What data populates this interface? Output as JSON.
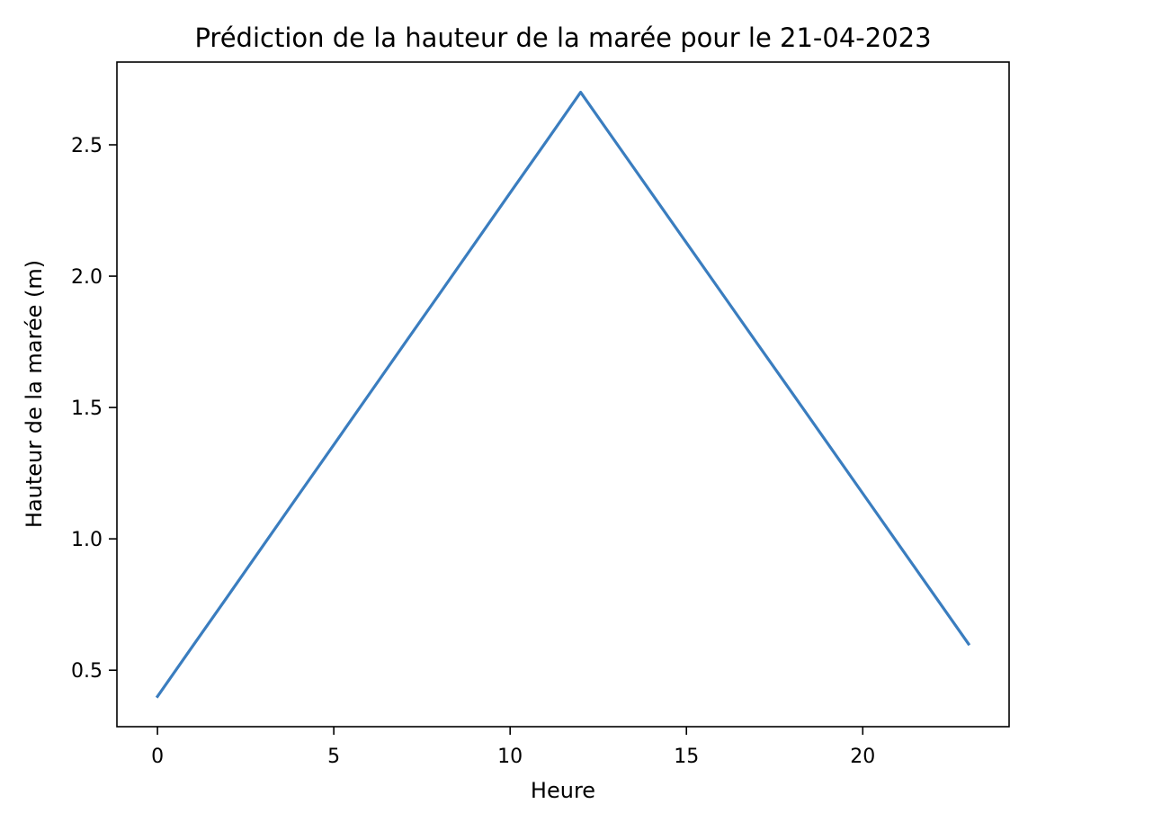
{
  "chart_data": {
    "type": "line",
    "title": "Prédiction de la hauteur de la marée pour le 21-04-2023",
    "xlabel": "Heure",
    "ylabel": "Hauteur de la marée (m)",
    "xlim": [
      -1.15,
      24.15
    ],
    "ylim": [
      0.285,
      2.815
    ],
    "x_ticks": [
      0,
      5,
      10,
      15,
      20
    ],
    "x_tick_labels": [
      "0",
      "5",
      "10",
      "15",
      "20"
    ],
    "y_ticks": [
      0.5,
      1.0,
      1.5,
      2.0,
      2.5
    ],
    "y_tick_labels": [
      "0.5",
      "1.0",
      "1.5",
      "2.0",
      "2.5"
    ],
    "grid": false,
    "series": [
      {
        "color": "#3a7dbf",
        "x": [
          0,
          1,
          2,
          3,
          4,
          5,
          6,
          7,
          8,
          9,
          10,
          11,
          12,
          13,
          14,
          15,
          16,
          17,
          18,
          19,
          20,
          21,
          22,
          23
        ],
        "values": [
          0.4,
          0.592,
          0.783,
          0.975,
          1.167,
          1.358,
          1.55,
          1.742,
          1.933,
          2.125,
          2.317,
          2.508,
          2.7,
          2.509,
          2.318,
          2.127,
          1.936,
          1.745,
          1.555,
          1.364,
          1.173,
          0.982,
          0.791,
          0.6
        ]
      }
    ]
  }
}
